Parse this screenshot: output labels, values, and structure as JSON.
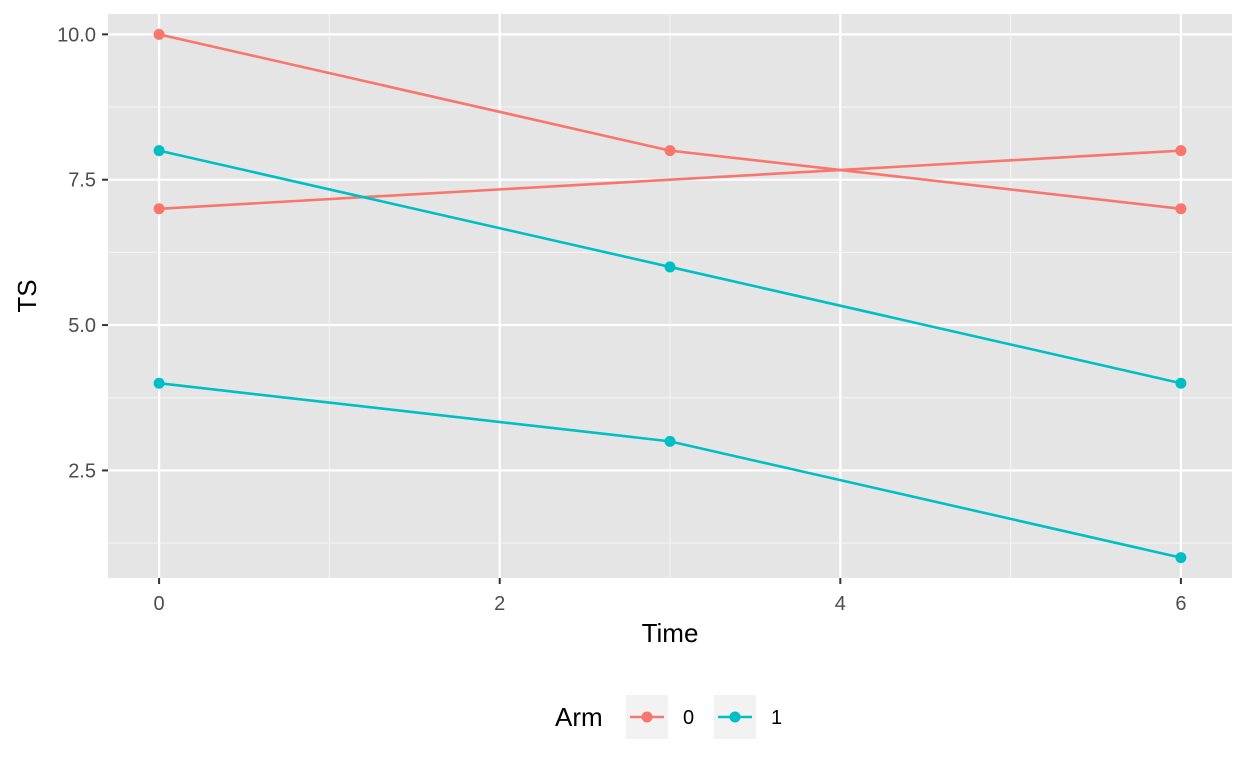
{
  "chart_data": {
    "type": "line",
    "xlabel": "Time",
    "ylabel": "TS",
    "xlim": [
      -0.3,
      6.3
    ],
    "ylim": [
      0.65,
      10.35
    ],
    "x_ticks": [
      0,
      2,
      4,
      6
    ],
    "x_tick_labels": [
      "0",
      "2",
      "4",
      "6"
    ],
    "y_ticks": [
      2.5,
      5.0,
      7.5,
      10.0
    ],
    "y_tick_labels": [
      "2.5",
      "5.0",
      "7.5",
      "10.0"
    ],
    "grid": true,
    "background": "#e5e5e5",
    "legend": {
      "title": "Arm",
      "position": "bottom",
      "entries": [
        {
          "label": "0",
          "color": "#F8766D"
        },
        {
          "label": "1",
          "color": "#00BFC4"
        }
      ]
    },
    "series": [
      {
        "group": "0",
        "color": "#F8766D",
        "x": [
          0,
          3,
          6
        ],
        "y": [
          10,
          8,
          7
        ]
      },
      {
        "group": "0",
        "color": "#F8766D",
        "x": [
          0,
          6
        ],
        "y": [
          7,
          8
        ]
      },
      {
        "group": "1",
        "color": "#00BFC4",
        "x": [
          0,
          3,
          6
        ],
        "y": [
          8,
          6,
          4
        ]
      },
      {
        "group": "1",
        "color": "#00BFC4",
        "x": [
          0,
          3,
          6
        ],
        "y": [
          4,
          3,
          1
        ]
      }
    ]
  }
}
